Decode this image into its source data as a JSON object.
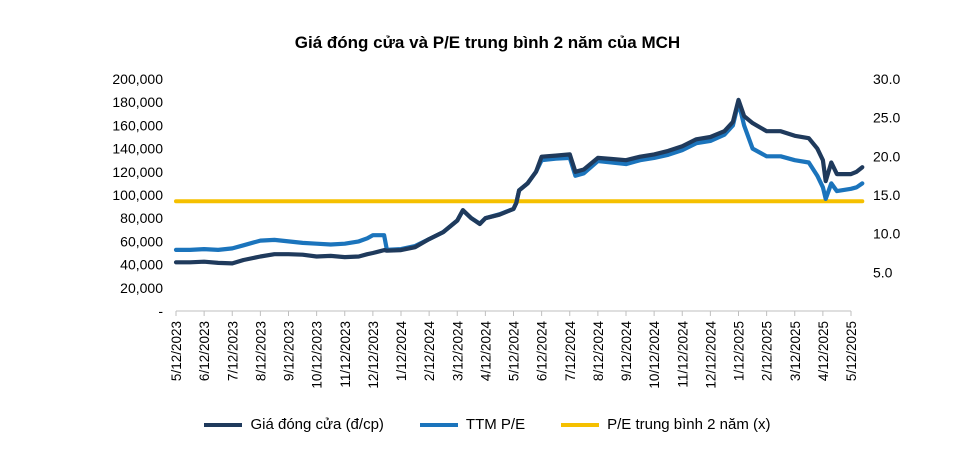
{
  "chart_data": {
    "type": "line",
    "title": "Giá đóng cửa và P/E trung bình 2 năm của MCH",
    "left_axis": {
      "range": [
        0,
        200000
      ],
      "ticks": [
        0,
        20000,
        40000,
        60000,
        80000,
        100000,
        120000,
        140000,
        160000,
        180000,
        200000
      ],
      "tick_labels": [
        "-",
        "20,000",
        "40,000",
        "60,000",
        "80,000",
        "100,000",
        "120,000",
        "140,000",
        "160,000",
        "180,000",
        "200,000"
      ]
    },
    "right_axis": {
      "range": [
        0,
        30
      ],
      "tick_labels": [
        {
          "label": "5.0",
          "value": 5
        },
        {
          "label": "10.0",
          "value": 10
        },
        {
          "label": "15.0",
          "value": 15
        },
        {
          "label": "20.0",
          "value": 20
        },
        {
          "label": "25.0",
          "value": 25
        },
        {
          "label": "30.0",
          "value": 30
        }
      ]
    },
    "x_labels": [
      "5/12/2023",
      "6/12/2023",
      "7/12/2023",
      "8/12/2023",
      "9/12/2023",
      "10/12/2023",
      "11/12/2023",
      "12/12/2023",
      "1/12/2024",
      "2/12/2024",
      "3/12/2024",
      "4/12/2024",
      "5/12/2024",
      "6/12/2024",
      "7/12/2024",
      "8/12/2024",
      "9/12/2024",
      "10/12/2024",
      "11/12/2024",
      "12/12/2024",
      "1/12/2025",
      "2/12/2025",
      "3/12/2025",
      "4/12/2025",
      "5/12/2025"
    ],
    "series": [
      {
        "name": "Giá đóng cửa (đ/cp)",
        "axis": "left",
        "color": "#1f3a5c",
        "points": [
          [
            0,
            42000
          ],
          [
            0.5,
            42000
          ],
          [
            1,
            42500
          ],
          [
            1.5,
            41500
          ],
          [
            2,
            41000
          ],
          [
            2.4,
            44000
          ],
          [
            3,
            47000
          ],
          [
            3.5,
            49000
          ],
          [
            4,
            49000
          ],
          [
            4.5,
            48500
          ],
          [
            5,
            47000
          ],
          [
            5.5,
            47500
          ],
          [
            6,
            46500
          ],
          [
            6.5,
            47000
          ],
          [
            6.8,
            49000
          ],
          [
            7,
            50000
          ],
          [
            7.4,
            52500
          ],
          [
            7.5,
            52000
          ],
          [
            8,
            52500
          ],
          [
            8.5,
            55000
          ],
          [
            9,
            62000
          ],
          [
            9.5,
            68000
          ],
          [
            10,
            78000
          ],
          [
            10.2,
            87000
          ],
          [
            10.5,
            80000
          ],
          [
            10.8,
            75000
          ],
          [
            11,
            80000
          ],
          [
            11.5,
            83000
          ],
          [
            12,
            88000
          ],
          [
            12.1,
            93000
          ],
          [
            12.2,
            104000
          ],
          [
            12.5,
            110000
          ],
          [
            12.8,
            120000
          ],
          [
            13,
            133000
          ],
          [
            13.5,
            134000
          ],
          [
            14,
            135000
          ],
          [
            14.2,
            120000
          ],
          [
            14.5,
            122000
          ],
          [
            15,
            132000
          ],
          [
            15.5,
            131000
          ],
          [
            16,
            130000
          ],
          [
            16.5,
            133000
          ],
          [
            17,
            135000
          ],
          [
            17.5,
            138000
          ],
          [
            18,
            142000
          ],
          [
            18.5,
            148000
          ],
          [
            19,
            150000
          ],
          [
            19.5,
            155000
          ],
          [
            19.8,
            163000
          ],
          [
            20,
            182000
          ],
          [
            20.2,
            168000
          ],
          [
            20.5,
            162000
          ],
          [
            21,
            155000
          ],
          [
            21.5,
            155000
          ],
          [
            22,
            151000
          ],
          [
            22.5,
            149000
          ],
          [
            22.8,
            140000
          ],
          [
            23,
            130000
          ],
          [
            23.1,
            112000
          ],
          [
            23.3,
            128000
          ],
          [
            23.5,
            118000
          ],
          [
            24,
            118000
          ],
          [
            24.2,
            120000
          ],
          [
            24.4,
            124000
          ]
        ]
      },
      {
        "name": "TTM P/E",
        "axis": "right",
        "color": "#1b74bc",
        "points": [
          [
            0,
            7.9
          ],
          [
            0.5,
            7.9
          ],
          [
            1,
            8.0
          ],
          [
            1.5,
            7.9
          ],
          [
            2,
            8.1
          ],
          [
            2.4,
            8.5
          ],
          [
            3,
            9.1
          ],
          [
            3.5,
            9.2
          ],
          [
            4,
            9.0
          ],
          [
            4.5,
            8.8
          ],
          [
            5,
            8.7
          ],
          [
            5.5,
            8.6
          ],
          [
            6,
            8.7
          ],
          [
            6.5,
            9.0
          ],
          [
            6.8,
            9.4
          ],
          [
            7,
            9.8
          ],
          [
            7.4,
            9.8
          ],
          [
            7.5,
            7.9
          ],
          [
            8,
            8.0
          ],
          [
            8.5,
            8.4
          ],
          [
            9,
            9.3
          ],
          [
            9.5,
            10.2
          ],
          [
            10,
            11.7
          ],
          [
            10.2,
            13.0
          ],
          [
            10.5,
            12.0
          ],
          [
            10.8,
            11.3
          ],
          [
            11,
            12.0
          ],
          [
            11.5,
            12.5
          ],
          [
            12,
            13.2
          ],
          [
            12.1,
            14.0
          ],
          [
            12.2,
            15.6
          ],
          [
            12.5,
            16.5
          ],
          [
            12.8,
            18.0
          ],
          [
            13,
            19.5
          ],
          [
            13.5,
            19.7
          ],
          [
            14,
            19.8
          ],
          [
            14.2,
            17.5
          ],
          [
            14.5,
            17.8
          ],
          [
            15,
            19.4
          ],
          [
            15.5,
            19.2
          ],
          [
            16,
            19.0
          ],
          [
            16.5,
            19.5
          ],
          [
            17,
            19.8
          ],
          [
            17.5,
            20.2
          ],
          [
            18,
            20.8
          ],
          [
            18.5,
            21.7
          ],
          [
            19,
            22.0
          ],
          [
            19.5,
            22.8
          ],
          [
            19.8,
            24.0
          ],
          [
            20,
            27.0
          ],
          [
            20.2,
            24.0
          ],
          [
            20.5,
            21.0
          ],
          [
            21,
            20.0
          ],
          [
            21.5,
            20.0
          ],
          [
            22,
            19.5
          ],
          [
            22.5,
            19.2
          ],
          [
            22.8,
            17.5
          ],
          [
            23,
            16.0
          ],
          [
            23.1,
            14.5
          ],
          [
            23.3,
            16.5
          ],
          [
            23.5,
            15.5
          ],
          [
            24,
            15.8
          ],
          [
            24.2,
            16.0
          ],
          [
            24.4,
            16.5
          ]
        ]
      },
      {
        "name": "P/E trung bình 2 năm (x)",
        "axis": "right",
        "color": "#f5c000",
        "points": [
          [
            0,
            14.2
          ],
          [
            24.4,
            14.2
          ]
        ]
      }
    ],
    "legend": [
      "Giá đóng cửa (đ/cp)",
      "TTM P/E",
      "P/E trung bình 2 năm (x)"
    ],
    "legend_position": "bottom",
    "grid": false
  }
}
